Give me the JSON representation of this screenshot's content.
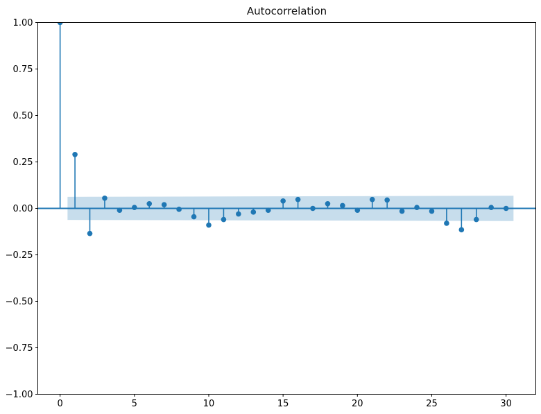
{
  "chart_data": {
    "type": "stem",
    "title": "Autocorrelation",
    "xlabel": "",
    "ylabel": "",
    "grid": false,
    "legend_position": "none",
    "xlim": [
      -1.5,
      32.0
    ],
    "ylim": [
      -1.0,
      1.0
    ],
    "xticks": [
      0,
      5,
      10,
      15,
      20,
      25,
      30
    ],
    "xtick_labels": [
      "0",
      "5",
      "10",
      "15",
      "20",
      "25",
      "30"
    ],
    "ytick_values": [
      1.0,
      0.75,
      0.5,
      0.25,
      0.0,
      -0.25,
      -0.5,
      -0.75,
      -1.0
    ],
    "ytick_labels": [
      "1.00",
      "0.75",
      "0.50",
      "0.25",
      "0.00",
      "−0.25",
      "−0.50",
      "−0.75",
      "−1.00"
    ],
    "lags": [
      0,
      1,
      2,
      3,
      4,
      5,
      6,
      7,
      8,
      9,
      10,
      11,
      12,
      13,
      14,
      15,
      16,
      17,
      18,
      19,
      20,
      21,
      22,
      23,
      24,
      25,
      26,
      27,
      28,
      29,
      30
    ],
    "acf": [
      1.0,
      0.29,
      -0.135,
      0.055,
      -0.01,
      0.005,
      0.025,
      0.02,
      -0.005,
      -0.045,
      -0.09,
      -0.06,
      -0.03,
      -0.02,
      -0.01,
      0.04,
      0.048,
      0.0,
      0.025,
      0.015,
      -0.01,
      0.048,
      0.045,
      -0.015,
      0.005,
      -0.015,
      -0.08,
      -0.115,
      -0.06,
      0.005,
      0.0
    ],
    "confidence_band": {
      "x_start": 0.5,
      "x_end": 30.5,
      "upper_start": 0.062,
      "upper_end": 0.068,
      "lower_start": -0.062,
      "lower_end": -0.068
    },
    "colors": {
      "series": "#1f77b4",
      "band": "rgba(31,119,180,0.25)",
      "spine": "#000000",
      "tick_text": "#000000"
    }
  }
}
